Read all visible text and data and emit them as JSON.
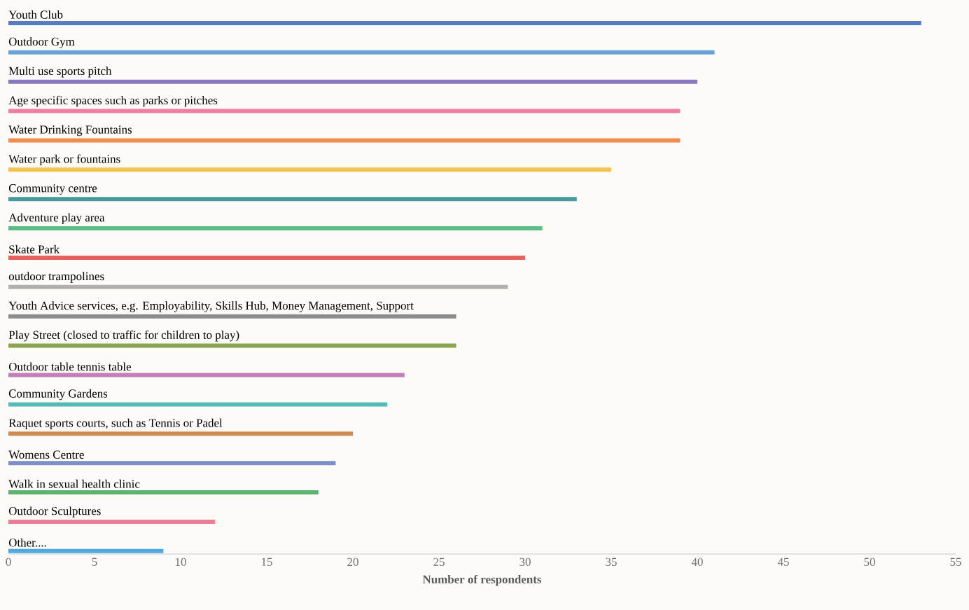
{
  "chart_data": {
    "type": "bar",
    "orientation": "horizontal",
    "xlabel": "Number of respondents",
    "categories": [
      "Youth Club",
      "Outdoor Gym",
      "Multi use sports pitch",
      "Age specific spaces such as parks or pitches",
      "Water Drinking Fountains",
      "Water park or fountains",
      "Community centre",
      "Adventure play area",
      "Skate Park",
      "outdoor trampolines",
      "Youth Advice services, e.g. Employability, Skills Hub, Money Management, Support",
      "Play Street (closed to traffic for children to play)",
      "Outdoor table tennis table",
      "Community Gardens",
      "Raquet sports courts, such as Tennis or Padel",
      "Womens Centre",
      "Walk in sexual health clinic",
      "Outdoor Sculptures",
      "Other...."
    ],
    "values": [
      53,
      41,
      40,
      39,
      39,
      35,
      33,
      31,
      30,
      29,
      26,
      26,
      23,
      22,
      20,
      19,
      18,
      12,
      9
    ],
    "colors": [
      "#5a7bc4",
      "#6aa3d8",
      "#8a78bf",
      "#ee7fa0",
      "#f28c4e",
      "#f4c353",
      "#4a9a9a",
      "#5dbf85",
      "#e8615a",
      "#b0b0b0",
      "#8c8c8c",
      "#8aa34e",
      "#c47fbb",
      "#52b8b8",
      "#d08a4e",
      "#7f8fc8",
      "#5db36f",
      "#e87f98",
      "#4fa8e0"
    ],
    "xlim": [
      0,
      55
    ],
    "xticks": [
      0,
      5,
      10,
      15,
      20,
      25,
      30,
      35,
      40,
      45,
      50,
      55
    ]
  }
}
